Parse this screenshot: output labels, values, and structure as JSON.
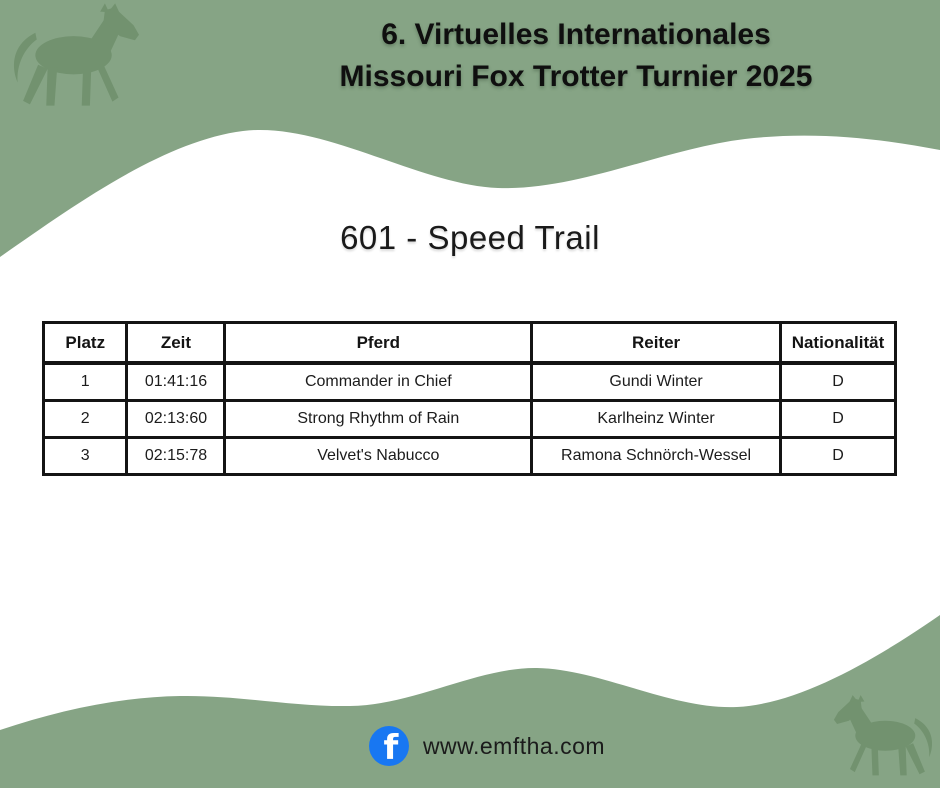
{
  "header": {
    "title_line1": "6. Virtuelles Internationales",
    "title_line2": "Missouri Fox Trotter Turnier 2025"
  },
  "section": {
    "heading": "601 - Speed Trail"
  },
  "results_table": {
    "columns": [
      "Platz",
      "Zeit",
      "Pferd",
      "Reiter",
      "Nationalität"
    ],
    "rows": [
      [
        "1",
        "01:41:16",
        "Commander in Chief",
        "Gundi Winter",
        "D"
      ],
      [
        "2",
        "02:13:60",
        "Strong Rhythm of Rain",
        "Karlheinz Winter",
        "D"
      ],
      [
        "3",
        "02:15:78",
        "Velvet's Nabucco",
        "Ramona Schnörch-Wessel",
        "D"
      ]
    ]
  },
  "footer": {
    "website": "www.emftha.com",
    "facebook_glyph": "f"
  },
  "icons": {
    "facebook": "facebook-icon",
    "horse_top_left": "horse-silhouette-icon",
    "horse_bottom_right": "horse-silhouette-icon"
  },
  "colors": {
    "background_green": "#86a485",
    "horse_silhouette_green": "#72926f",
    "facebook_blue": "#1877f2",
    "table_border": "#141414",
    "text": "#0f0f0f"
  }
}
